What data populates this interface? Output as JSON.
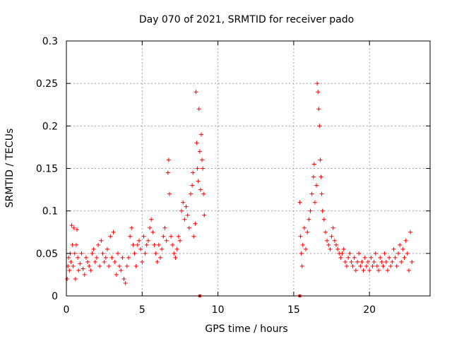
{
  "chart_data": {
    "type": "scatter",
    "title": "Day 070 of 2021, SRMTID for receiver pado",
    "xlabel": "GPS time / hours",
    "ylabel": "SRMTID / TECUs",
    "xlim": [
      0,
      24
    ],
    "ylim": [
      0,
      0.3
    ],
    "xticks": [
      0,
      5,
      10,
      15,
      20
    ],
    "xtick_labels": [
      "0",
      "5",
      "10",
      "15",
      "20"
    ],
    "yticks": [
      0,
      0.05,
      0.1,
      0.15,
      0.2,
      0.25,
      0.3
    ],
    "ytick_labels": [
      "0",
      "0.05",
      "0.1",
      "0.15",
      "0.2",
      "0.25",
      "0.3"
    ],
    "grid": true,
    "marker": "+",
    "series_color": "#ff0000",
    "data_gaps_marked_at_zero": [
      8.8,
      15.4
    ],
    "series": [
      {
        "name": "SRMTID",
        "points": [
          [
            0.05,
            0.02
          ],
          [
            0.1,
            0.035
          ],
          [
            0.15,
            0.045
          ],
          [
            0.2,
            0.03
          ],
          [
            0.25,
            0.05
          ],
          [
            0.3,
            0.04
          ],
          [
            0.35,
            0.083
          ],
          [
            0.4,
            0.06
          ],
          [
            0.45,
            0.035
          ],
          [
            0.5,
            0.08
          ],
          [
            0.55,
            0.05
          ],
          [
            0.6,
            0.02
          ],
          [
            0.65,
            0.06
          ],
          [
            0.7,
            0.078
          ],
          [
            0.75,
            0.045
          ],
          [
            0.8,
            0.03
          ],
          [
            0.9,
            0.038
          ],
          [
            1.0,
            0.05
          ],
          [
            1.1,
            0.032
          ],
          [
            1.2,
            0.025
          ],
          [
            1.3,
            0.045
          ],
          [
            1.4,
            0.04
          ],
          [
            1.5,
            0.035
          ],
          [
            1.6,
            0.03
          ],
          [
            1.7,
            0.05
          ],
          [
            1.8,
            0.055
          ],
          [
            1.9,
            0.04
          ],
          [
            2.0,
            0.045
          ],
          [
            2.1,
            0.06
          ],
          [
            2.2,
            0.035
          ],
          [
            2.3,
            0.065
          ],
          [
            2.4,
            0.05
          ],
          [
            2.5,
            0.04
          ],
          [
            2.6,
            0.045
          ],
          [
            2.7,
            0.055
          ],
          [
            2.8,
            0.035
          ],
          [
            2.9,
            0.07
          ],
          [
            3.0,
            0.045
          ],
          [
            3.1,
            0.075
          ],
          [
            3.2,
            0.04
          ],
          [
            3.3,
            0.025
          ],
          [
            3.4,
            0.05
          ],
          [
            3.5,
            0.035
          ],
          [
            3.6,
            0.03
          ],
          [
            3.7,
            0.045
          ],
          [
            3.8,
            0.02
          ],
          [
            3.9,
            0.015
          ],
          [
            4.0,
            0.035
          ],
          [
            4.1,
            0.045
          ],
          [
            4.2,
            0.07
          ],
          [
            4.3,
            0.08
          ],
          [
            4.4,
            0.06
          ],
          [
            4.5,
            0.05
          ],
          [
            4.6,
            0.035
          ],
          [
            4.7,
            0.06
          ],
          [
            4.8,
            0.065
          ],
          [
            4.9,
            0.055
          ],
          [
            5.0,
            0.04
          ],
          [
            5.1,
            0.07
          ],
          [
            5.2,
            0.05
          ],
          [
            5.3,
            0.06
          ],
          [
            5.4,
            0.065
          ],
          [
            5.5,
            0.08
          ],
          [
            5.6,
            0.09
          ],
          [
            5.7,
            0.075
          ],
          [
            5.8,
            0.06
          ],
          [
            5.9,
            0.05
          ],
          [
            6.0,
            0.04
          ],
          [
            6.1,
            0.06
          ],
          [
            6.2,
            0.045
          ],
          [
            6.3,
            0.055
          ],
          [
            6.4,
            0.07
          ],
          [
            6.5,
            0.08
          ],
          [
            6.6,
            0.065
          ],
          [
            6.7,
            0.145
          ],
          [
            6.75,
            0.16
          ],
          [
            6.8,
            0.12
          ],
          [
            6.9,
            0.07
          ],
          [
            7.0,
            0.06
          ],
          [
            7.1,
            0.05
          ],
          [
            7.2,
            0.045
          ],
          [
            7.3,
            0.055
          ],
          [
            7.4,
            0.07
          ],
          [
            7.5,
            0.065
          ],
          [
            7.6,
            0.1
          ],
          [
            7.7,
            0.11
          ],
          [
            7.8,
            0.09
          ],
          [
            7.9,
            0.105
          ],
          [
            8.0,
            0.095
          ],
          [
            8.1,
            0.08
          ],
          [
            8.2,
            0.12
          ],
          [
            8.3,
            0.13
          ],
          [
            8.35,
            0.145
          ],
          [
            8.4,
            0.07
          ],
          [
            8.5,
            0.085
          ],
          [
            8.55,
            0.24
          ],
          [
            8.6,
            0.18
          ],
          [
            8.65,
            0.15
          ],
          [
            8.7,
            0.135
          ],
          [
            8.75,
            0.22
          ],
          [
            8.8,
            0.17
          ],
          [
            8.85,
            0.125
          ],
          [
            8.9,
            0.19
          ],
          [
            8.95,
            0.16
          ],
          [
            9.0,
            0.15
          ],
          [
            9.05,
            0.12
          ],
          [
            9.1,
            0.095
          ],
          [
            15.4,
            0.11
          ],
          [
            15.45,
            0.07
          ],
          [
            15.5,
            0.05
          ],
          [
            15.55,
            0.035
          ],
          [
            15.6,
            0.06
          ],
          [
            15.7,
            0.08
          ],
          [
            15.8,
            0.055
          ],
          [
            15.9,
            0.075
          ],
          [
            16.0,
            0.09
          ],
          [
            16.1,
            0.1
          ],
          [
            16.2,
            0.12
          ],
          [
            16.3,
            0.14
          ],
          [
            16.35,
            0.155
          ],
          [
            16.4,
            0.11
          ],
          [
            16.5,
            0.13
          ],
          [
            16.55,
            0.25
          ],
          [
            16.6,
            0.24
          ],
          [
            16.65,
            0.22
          ],
          [
            16.7,
            0.2
          ],
          [
            16.75,
            0.16
          ],
          [
            16.8,
            0.14
          ],
          [
            16.85,
            0.12
          ],
          [
            16.9,
            0.1
          ],
          [
            17.0,
            0.09
          ],
          [
            17.1,
            0.075
          ],
          [
            17.2,
            0.065
          ],
          [
            17.3,
            0.06
          ],
          [
            17.4,
            0.055
          ],
          [
            17.5,
            0.07
          ],
          [
            17.6,
            0.08
          ],
          [
            17.7,
            0.065
          ],
          [
            17.8,
            0.06
          ],
          [
            17.9,
            0.055
          ],
          [
            18.0,
            0.05
          ],
          [
            18.1,
            0.045
          ],
          [
            18.2,
            0.05
          ],
          [
            18.3,
            0.055
          ],
          [
            18.4,
            0.04
          ],
          [
            18.5,
            0.035
          ],
          [
            18.6,
            0.045
          ],
          [
            18.7,
            0.05
          ],
          [
            18.8,
            0.04
          ],
          [
            18.9,
            0.035
          ],
          [
            19.0,
            0.045
          ],
          [
            19.1,
            0.03
          ],
          [
            19.2,
            0.04
          ],
          [
            19.3,
            0.05
          ],
          [
            19.4,
            0.035
          ],
          [
            19.5,
            0.04
          ],
          [
            19.6,
            0.03
          ],
          [
            19.7,
            0.045
          ],
          [
            19.8,
            0.035
          ],
          [
            19.9,
            0.04
          ],
          [
            20.0,
            0.03
          ],
          [
            20.1,
            0.045
          ],
          [
            20.2,
            0.035
          ],
          [
            20.3,
            0.04
          ],
          [
            20.4,
            0.05
          ],
          [
            20.5,
            0.035
          ],
          [
            20.6,
            0.03
          ],
          [
            20.7,
            0.045
          ],
          [
            20.8,
            0.04
          ],
          [
            20.9,
            0.035
          ],
          [
            21.0,
            0.05
          ],
          [
            21.1,
            0.04
          ],
          [
            21.2,
            0.03
          ],
          [
            21.3,
            0.045
          ],
          [
            21.4,
            0.035
          ],
          [
            21.5,
            0.04
          ],
          [
            21.6,
            0.055
          ],
          [
            21.7,
            0.045
          ],
          [
            21.8,
            0.035
          ],
          [
            21.9,
            0.05
          ],
          [
            22.0,
            0.06
          ],
          [
            22.1,
            0.04
          ],
          [
            22.2,
            0.055
          ],
          [
            22.3,
            0.045
          ],
          [
            22.4,
            0.065
          ],
          [
            22.5,
            0.05
          ],
          [
            22.6,
            0.03
          ],
          [
            22.7,
            0.075
          ],
          [
            22.8,
            0.04
          ]
        ]
      }
    ]
  }
}
